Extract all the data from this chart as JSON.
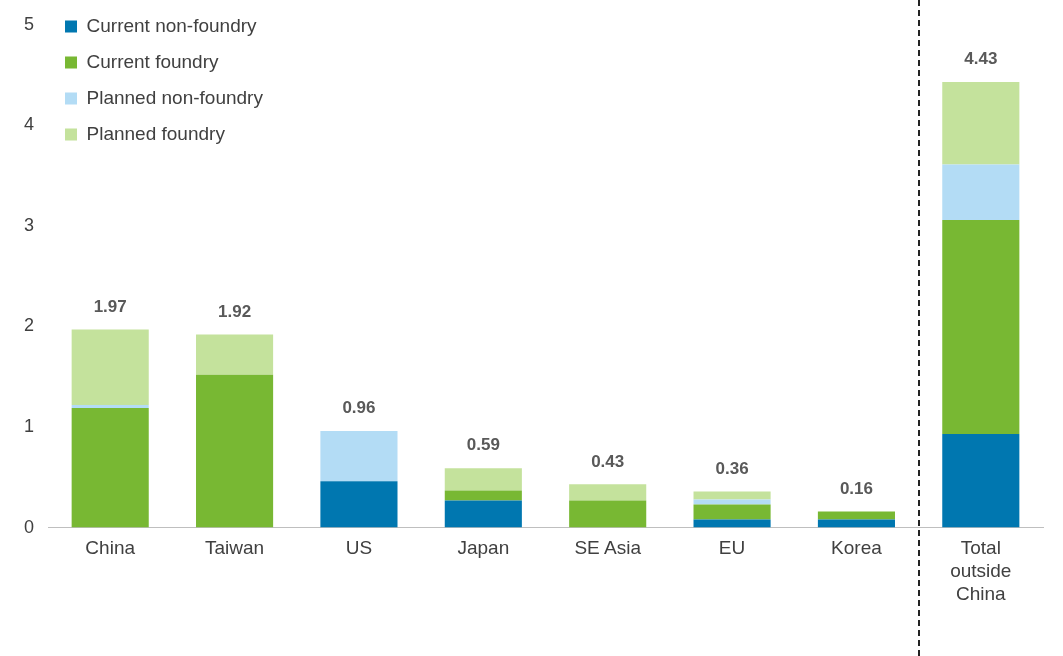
{
  "chart_data": {
    "type": "bar",
    "stacked": true,
    "categories": [
      "China",
      "Taiwan",
      "US",
      "Japan",
      "SE Asia",
      "EU",
      "Korea",
      "Total outside China"
    ],
    "series": [
      {
        "name": "Current non-foundry",
        "color": "#0077b0",
        "values": [
          0,
          0,
          0.46,
          0.27,
          0,
          0.08,
          0.08,
          0.93
        ]
      },
      {
        "name": "Current foundry",
        "color": "#78b833",
        "values": [
          1.19,
          1.52,
          0,
          0.1,
          0.27,
          0.15,
          0.08,
          2.13
        ]
      },
      {
        "name": "Planned non-foundry",
        "color": "#b3dcf5",
        "values": [
          0.03,
          0,
          0.5,
          0,
          0,
          0.05,
          0,
          0.55
        ]
      },
      {
        "name": "Planned foundry",
        "color": "#c4e29c",
        "values": [
          0.75,
          0.4,
          0,
          0.22,
          0.16,
          0.08,
          0,
          0.82
        ]
      }
    ],
    "totals": [
      "1.97",
      "1.92",
      "0.96",
      "0.59",
      "0.43",
      "0.36",
      "0.16",
      "4.43"
    ],
    "ylim": [
      0,
      5
    ],
    "yticks": [
      0,
      1,
      2,
      3,
      4,
      5
    ],
    "grid": false,
    "legend": "top left"
  }
}
